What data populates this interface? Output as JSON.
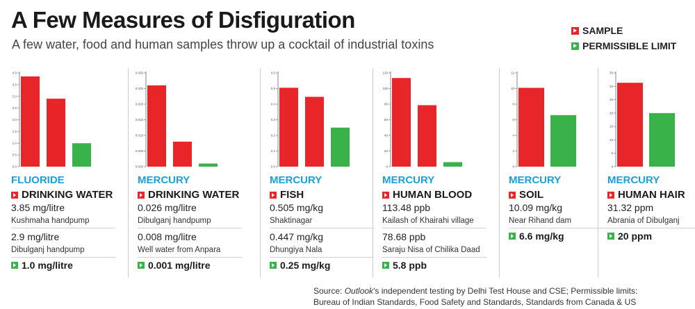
{
  "title": "A Few Measures of Disfiguration",
  "subtitle": "A few water, food and human samples throw up a cocktail of industrial toxins",
  "legend": {
    "sample_label": "SAMPLE",
    "limit_label": "PERMISSIBLE LIMIT",
    "sample_color": "#e8262a",
    "limit_color": "#3ab24a"
  },
  "source": {
    "prefix": "Source: ",
    "italic": "Outlook",
    "rest": "'s independent testing by Delhi Test House and CSE; Permissible limits:",
    "line2": "Bureau of Indian Standards, Food Safety and Standards, Standards from Canada & US"
  },
  "chart_data": [
    {
      "type": "bar",
      "metal": "FLUORIDE",
      "medium": "DRINKING WATER",
      "ylim": [
        0,
        4.0
      ],
      "ticks": [
        "0.0",
        "0.5",
        "1.0",
        "1.5",
        "2.0",
        "2.5",
        "3.0",
        "3.5",
        "4.0"
      ],
      "values": [
        3.85,
        2.9,
        1.0
      ],
      "samples": [
        {
          "value": "3.85 mg/litre",
          "location": "Kushmaha handpump"
        },
        {
          "value": "2.9 mg/litre",
          "location": "Dibulganj handpump"
        }
      ],
      "limit": "1.0 mg/litre"
    },
    {
      "type": "bar",
      "metal": "MERCURY",
      "medium": "DRINKING WATER",
      "ylim": [
        0,
        0.03
      ],
      "ticks": [
        "0.000",
        "0.005",
        "0.010",
        "0.015",
        "0.020",
        "0.025",
        "0.030"
      ],
      "values": [
        0.026,
        0.008,
        0.001
      ],
      "samples": [
        {
          "value": "0.026 mg/litre",
          "location": "Dibulganj handpump"
        },
        {
          "value": "0.008 mg/litre",
          "location": "Well water from Anpara"
        }
      ],
      "limit": "0.001 mg/litre"
    },
    {
      "type": "bar",
      "metal": "MERCURY",
      "medium": "FISH",
      "ylim": [
        0,
        0.6
      ],
      "ticks": [
        "0.0",
        "0.1",
        "0.2",
        "0.3",
        "0.4",
        "0.5",
        "0.6"
      ],
      "values": [
        0.505,
        0.447,
        0.25
      ],
      "samples": [
        {
          "value": "0.505 mg/kg",
          "location": "Shaktinagar"
        },
        {
          "value": "0.447 mg/kg",
          "location": "Dhungiya Nala"
        }
      ],
      "limit": "0.25 mg/kg"
    },
    {
      "type": "bar",
      "metal": "MERCURY",
      "medium": "HUMAN BLOOD",
      "ylim": [
        0,
        120
      ],
      "ticks": [
        "0",
        "20",
        "40",
        "60",
        "80",
        "100",
        "120"
      ],
      "values": [
        113.48,
        78.68,
        5.8
      ],
      "samples": [
        {
          "value": "113.48 ppb",
          "location": "Kailash of Khairahi village"
        },
        {
          "value": "78.68 ppb",
          "location": "Saraju Nisa of Chilika Daad"
        }
      ],
      "limit": "5.8 ppb"
    },
    {
      "type": "bar",
      "metal": "MERCURY",
      "medium": "SOIL",
      "ylim": [
        0,
        12
      ],
      "ticks": [
        "0",
        "2",
        "4",
        "6",
        "8",
        "10",
        "12"
      ],
      "values": [
        10.09,
        6.6
      ],
      "samples": [
        {
          "value": "10.09 mg/kg",
          "location": "Near Rihand dam"
        }
      ],
      "limit": "6.6 mg/kg"
    },
    {
      "type": "bar",
      "metal": "MERCURY",
      "medium": "HUMAN HAIR",
      "ylim": [
        0,
        35
      ],
      "ticks": [
        "0",
        "5",
        "10",
        "15",
        "20",
        "25",
        "30",
        "35"
      ],
      "values": [
        31.32,
        20
      ],
      "samples": [
        {
          "value": "31.32 ppm",
          "location": "Abrania of Dibulganj"
        }
      ],
      "limit": "20 ppm"
    }
  ]
}
